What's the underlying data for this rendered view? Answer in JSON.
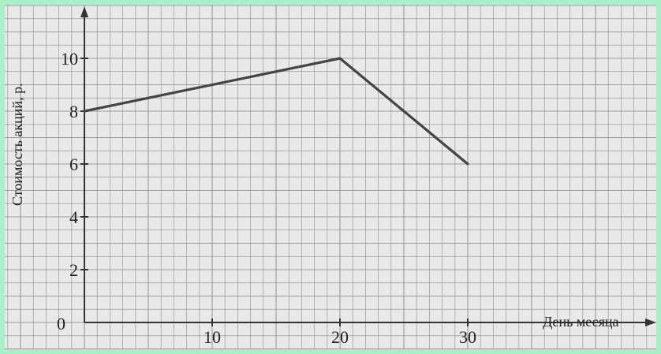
{
  "chart_data": {
    "type": "line",
    "xlabel": "День месяца",
    "ylabel": "Стоимость акций, р.",
    "origin_label": "0",
    "x_ticks": [
      10,
      20,
      30
    ],
    "y_ticks": [
      2,
      4,
      6,
      8,
      10
    ],
    "xlim": [
      0,
      45
    ],
    "ylim": [
      0,
      11
    ],
    "grid": true,
    "series": [
      {
        "x": [
          0,
          20,
          30
        ],
        "y": [
          8,
          10,
          6
        ]
      }
    ],
    "colors": {
      "line": "#444444",
      "grid": "#9a9a9a",
      "axis": "#333333",
      "background": "#e9e9e9",
      "border": "#a8f0c8"
    }
  }
}
